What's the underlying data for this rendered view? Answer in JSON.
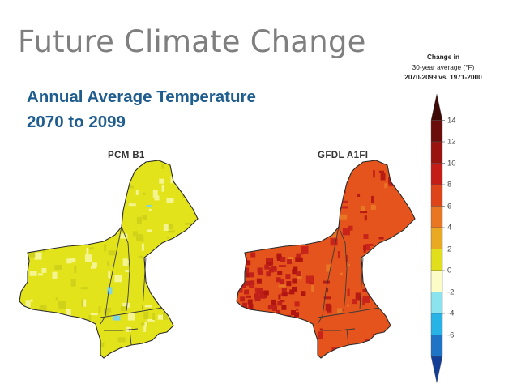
{
  "slide": {
    "title": "Future Climate Change",
    "subtitle_line1": "Annual Average Temperature",
    "subtitle_line2": "2070 to 2099"
  },
  "maps": [
    {
      "label": "PCM B1",
      "base_color": "#e3e31b",
      "accent_colors": [
        "#f4f490",
        "#d0d21a",
        "#7fd6e3"
      ]
    },
    {
      "label": "GFDL A1FI",
      "base_color": "#e4541c",
      "accent_colors": [
        "#c8241a",
        "#e97625",
        "#b81a14"
      ]
    }
  ],
  "legend": {
    "title_line1": "Change in",
    "title_line2": "30-year average (°F)",
    "title_line3": "2070-2099 vs. 1971-2000",
    "ticks": [
      "14",
      "12",
      "10",
      "8",
      "6",
      "4",
      "2",
      "0",
      "-2",
      "-4",
      "-6"
    ],
    "tick_values": [
      14,
      12,
      10,
      8,
      6,
      4,
      2,
      0,
      -2,
      -4,
      -6
    ],
    "range": [
      -8,
      16
    ],
    "colors_top_to_bottom": [
      "#3d0a05",
      "#6b0d0a",
      "#99130f",
      "#c41d17",
      "#dd4419",
      "#e97623",
      "#e9a923",
      "#e1df1c",
      "#fcfcc6",
      "#8be3ee",
      "#27b3e5",
      "#1f74c6",
      "#143f96"
    ]
  }
}
